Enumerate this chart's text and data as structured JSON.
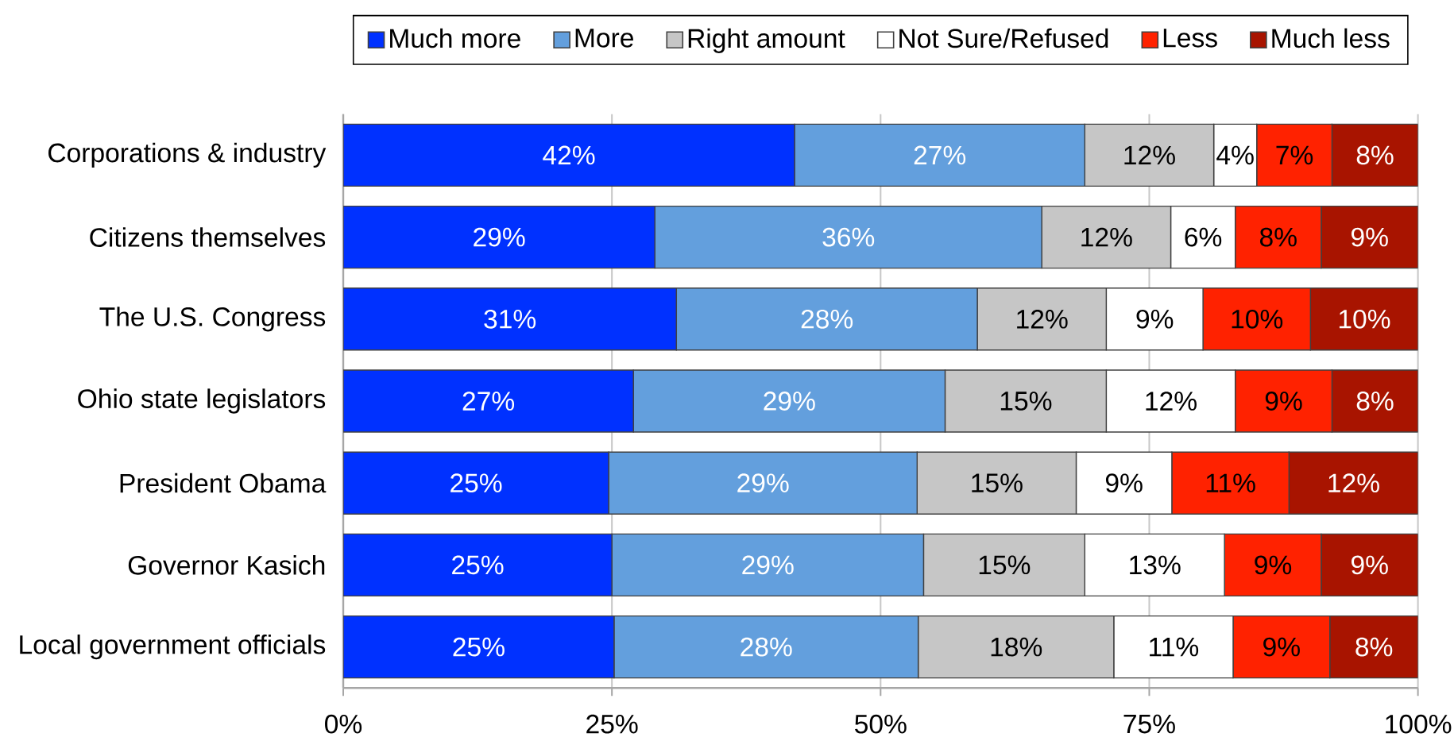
{
  "chart_data": {
    "type": "bar",
    "orientation": "horizontal",
    "stacked": true,
    "categories": [
      "Corporations & industry",
      "Citizens themselves",
      "The U.S. Congress",
      "Ohio state legislators",
      "President Obama",
      "Governor Kasich",
      "Local government officials"
    ],
    "series": [
      {
        "name": "Much more",
        "color": "#0031ff",
        "values": [
          42,
          29,
          31,
          27,
          24.7,
          25,
          25.2
        ],
        "value_labels": [
          "42%",
          "29%",
          "31%",
          "27%",
          "25%",
          "25%",
          "25%"
        ]
      },
      {
        "name": "More",
        "color": "#639fdd",
        "values": [
          27,
          36,
          28,
          29,
          28.7,
          29,
          28.3
        ],
        "value_labels": [
          "27%",
          "36%",
          "28%",
          "29%",
          "29%",
          "29%",
          "28%"
        ]
      },
      {
        "name": "Right amount",
        "color": "#c6c6c6",
        "values": [
          12,
          12,
          12,
          15,
          14.8,
          15,
          18.2
        ],
        "value_labels": [
          "12%",
          "12%",
          "12%",
          "15%",
          "15%",
          "15%",
          "18%"
        ]
      },
      {
        "name": "Not Sure/Refused",
        "color": "#ffffff",
        "values": [
          4,
          6,
          9,
          12,
          8.9,
          13,
          11.1
        ],
        "value_labels": [
          "4%",
          "6%",
          "9%",
          "12%",
          "9%",
          "13%",
          "11%"
        ]
      },
      {
        "name": "Less",
        "color": "#ff2200",
        "values": [
          7,
          8,
          10,
          9,
          10.9,
          9,
          9.0
        ],
        "value_labels": [
          "7%",
          "8%",
          "10%",
          "9%",
          "11%",
          "9%",
          "9%"
        ]
      },
      {
        "name": "Much less",
        "color": "#a81400",
        "values": [
          8,
          9,
          10,
          8,
          12.0,
          9,
          8.2
        ],
        "value_labels": [
          "8%",
          "9%",
          "10%",
          "8%",
          "12%",
          "9%",
          "8%"
        ]
      }
    ],
    "xlim": [
      0,
      100
    ],
    "xticks": [
      {
        "value": 0,
        "label": "0%"
      },
      {
        "value": 25,
        "label": "25%"
      },
      {
        "value": 50,
        "label": "50%"
      },
      {
        "value": 75,
        "label": "75%"
      },
      {
        "value": 100,
        "label": "100%"
      }
    ],
    "grid": "x",
    "legend": "top"
  }
}
